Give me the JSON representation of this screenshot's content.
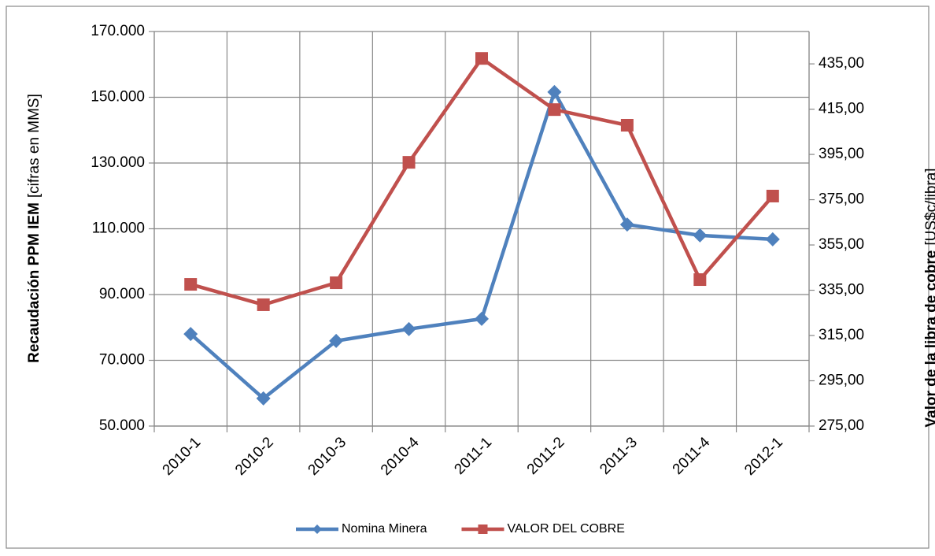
{
  "chart_data": {
    "type": "line",
    "ylabel": [
      "Recaudación PPM IEM",
      "[cifras en MMS]"
    ],
    "y2label": [
      "Valor de la libra de cobre",
      "[US$c/libra]"
    ],
    "categories": [
      "2010-1",
      "2010-2",
      "2010-3",
      "2010-4",
      "2011-1",
      "2011-2",
      "2011-3",
      "2011-4",
      "2012-1"
    ],
    "series": [
      {
        "name": "Nomina Minera",
        "color": "#4f81bd",
        "marker": "diamond",
        "values": [
          78000,
          58400,
          75900,
          79500,
          82600,
          151600,
          111300,
          108000,
          106800
        ]
      },
      {
        "name": "VALOR DEL COBRE",
        "color": "#c0504d",
        "marker": "square",
        "axis": "y2",
        "values": [
          337.6,
          328.6,
          338.3,
          391.5,
          437.4,
          414.8,
          407.9,
          339.7,
          376.6
        ]
      }
    ],
    "ylim": [
      50000,
      170000
    ],
    "yticks": [
      {
        "value": 50000,
        "label": "50.000"
      },
      {
        "value": 70000,
        "label": "70.000"
      },
      {
        "value": 90000,
        "label": "90.000"
      },
      {
        "value": 110000,
        "label": "110.000"
      },
      {
        "value": 130000,
        "label": "130.000"
      },
      {
        "value": 150000,
        "label": "150.000"
      },
      {
        "value": 170000,
        "label": "170.000"
      }
    ],
    "y2lim": [
      275,
      449.3
    ],
    "y2ticks": [
      {
        "value": 275,
        "label": "275,00"
      },
      {
        "value": 295,
        "label": "295,00"
      },
      {
        "value": 315,
        "label": "315,00"
      },
      {
        "value": 335,
        "label": "335,00"
      },
      {
        "value": 355,
        "label": "355,00"
      },
      {
        "value": 375,
        "label": "375,00"
      },
      {
        "value": 395,
        "label": "395,00"
      },
      {
        "value": 415,
        "label": "415,00"
      },
      {
        "value": 435,
        "label": "435,00"
      }
    ],
    "grid": true,
    "legend": "bottom"
  }
}
